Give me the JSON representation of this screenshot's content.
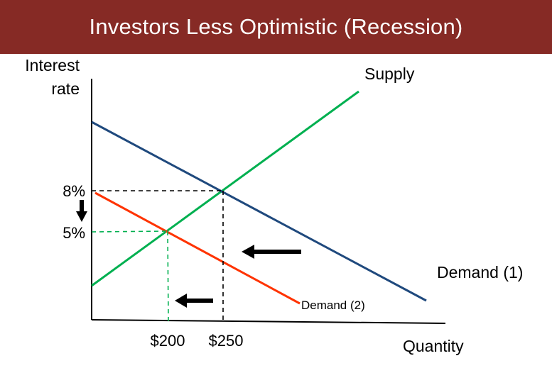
{
  "title": "Investors Less Optimistic (Recession)",
  "chart_data": {
    "type": "line",
    "ylabel_line1": "Interest",
    "ylabel_line2": "rate",
    "xlabel": "Quantity",
    "y_ticks": [
      "8%",
      "5%"
    ],
    "x_ticks": [
      "$200",
      "$250"
    ],
    "series": [
      {
        "name": "Supply",
        "color": "#00b050"
      },
      {
        "name": "Demand (1)",
        "color": "#1f497d"
      },
      {
        "name": "Demand (2)",
        "color": "#ff3300"
      }
    ],
    "equilibria": [
      {
        "quantity": 250,
        "rate": 8,
        "guide_color": "#000000"
      },
      {
        "quantity": 200,
        "rate": 5,
        "guide_color": "#00b050"
      }
    ],
    "shift_arrows": [
      "left",
      "left"
    ],
    "rate_change_arrow": "down"
  }
}
